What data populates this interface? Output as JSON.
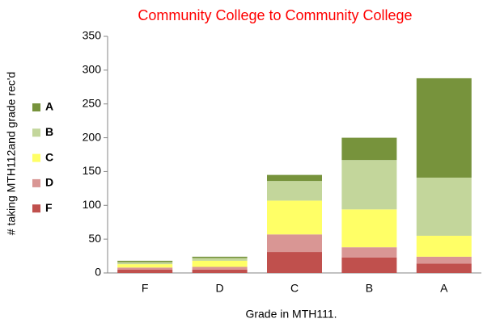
{
  "chart_data": {
    "type": "stacked_bar",
    "title": "Community College to Community College",
    "x_label": "Grade in MTH111.",
    "y_label": "# taking MTH112and grade rec'd",
    "categories": [
      "F",
      "D",
      "C",
      "B",
      "A"
    ],
    "series": [
      {
        "name": "F",
        "color": "#c0504d",
        "values": [
          5,
          5,
          31,
          23,
          14
        ]
      },
      {
        "name": "D",
        "color": "#d99694",
        "values": [
          3,
          4,
          26,
          15,
          10
        ]
      },
      {
        "name": "C",
        "color": "#ffff66",
        "values": [
          5,
          9,
          50,
          56,
          31
        ]
      },
      {
        "name": "B",
        "color": "#c3d69b",
        "values": [
          3,
          4,
          29,
          73,
          86
        ]
      },
      {
        "name": "A",
        "color": "#77933c",
        "values": [
          2,
          2,
          9,
          33,
          147
        ]
      }
    ],
    "ylim": [
      0,
      350
    ],
    "yticks": [
      0,
      50,
      100,
      150,
      200,
      250,
      300,
      350
    ],
    "legend": "left"
  }
}
